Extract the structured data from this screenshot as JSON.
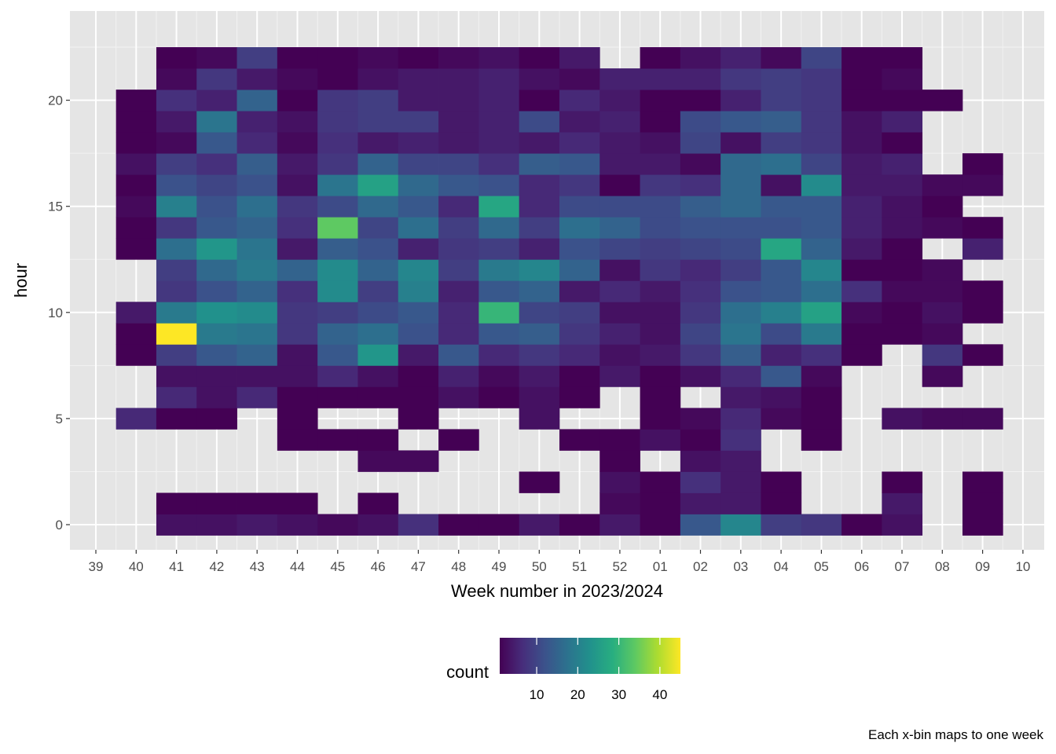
{
  "chart_data": {
    "type": "heatmap",
    "xlabel": "Week number in 2023/2024",
    "ylabel": "hour",
    "caption": "Each x-bin maps to one week",
    "x_ticks": [
      "39",
      "40",
      "41",
      "42",
      "43",
      "44",
      "45",
      "46",
      "47",
      "48",
      "49",
      "50",
      "51",
      "52",
      "01",
      "02",
      "03",
      "04",
      "05",
      "06",
      "07",
      "08",
      "09",
      "10"
    ],
    "y_ticks": [
      0,
      5,
      10,
      15,
      20
    ],
    "y_range": [
      -0.5,
      23.5
    ],
    "legend": {
      "title": "count",
      "position": "bottom",
      "colormap": "viridis",
      "min": 1,
      "max": 45,
      "ticks": [
        10,
        20,
        30,
        40
      ]
    },
    "grid": true,
    "weeks": [
      "40",
      "41",
      "42",
      "43",
      "44",
      "45",
      "46",
      "47",
      "48",
      "49",
      "50",
      "51",
      "52",
      "01",
      "02",
      "03",
      "04",
      "05",
      "06",
      "07",
      "08",
      "09"
    ],
    "values": {
      "40": {
        "5": 6,
        "8": 1,
        "9": 1,
        "10": 4,
        "13": 1,
        "14": 1,
        "15": 2,
        "16": 1,
        "17": 3,
        "18": 1,
        "19": 1,
        "20": 1
      },
      "41": {
        "0": 3,
        "1": 1,
        "5": 1,
        "6": 6,
        "7": 3,
        "8": 9,
        "9": 45,
        "10": 19,
        "11": 8,
        "12": 9,
        "13": 17,
        "14": 8,
        "15": 20,
        "16": 12,
        "17": 9,
        "18": 2,
        "19": 4,
        "20": 7,
        "21": 2,
        "22": 1
      },
      "42": {
        "0": 3,
        "1": 1,
        "5": 1,
        "6": 3,
        "7": 3,
        "8": 13,
        "9": 19,
        "10": 23,
        "11": 12,
        "12": 16,
        "13": 24,
        "14": 13,
        "15": 12,
        "16": 10,
        "17": 7,
        "18": 13,
        "19": 18,
        "20": 5,
        "21": 8,
        "22": 2
      },
      "43": {
        "0": 4,
        "1": 1,
        "6": 6,
        "7": 3,
        "8": 15,
        "9": 18,
        "10": 22,
        "11": 15,
        "12": 19,
        "13": 18,
        "14": 15,
        "15": 17,
        "16": 12,
        "17": 14,
        "18": 6,
        "19": 5,
        "20": 15,
        "21": 4,
        "22": 9
      },
      "44": {
        "0": 3,
        "1": 1,
        "4": 1,
        "5": 1,
        "6": 1,
        "7": 3,
        "8": 3,
        "9": 8,
        "10": 8,
        "11": 7,
        "12": 15,
        "13": 4,
        "14": 7,
        "15": 8,
        "16": 3,
        "17": 4,
        "18": 2,
        "19": 3,
        "20": 1,
        "21": 2,
        "22": 1
      },
      "45": {
        "0": 2,
        "4": 1,
        "6": 1,
        "7": 6,
        "8": 13,
        "9": 15,
        "10": 9,
        "11": 22,
        "12": 22,
        "13": 14,
        "14": 34,
        "15": 11,
        "16": 18,
        "17": 8,
        "18": 7,
        "19": 8,
        "20": 8,
        "21": 1,
        "22": 1
      },
      "46": {
        "0": 3,
        "1": 1,
        "3": 2,
        "4": 1,
        "6": 1,
        "7": 3,
        "8": 24,
        "9": 17,
        "10": 11,
        "11": 9,
        "12": 15,
        "13": 12,
        "14": 10,
        "15": 16,
        "16": 26,
        "17": 15,
        "18": 4,
        "19": 9,
        "20": 9,
        "21": 3,
        "22": 2
      },
      "47": {
        "0": 7,
        "3": 2,
        "5": 1,
        "6": 1,
        "7": 1,
        "8": 4,
        "9": 12,
        "10": 13,
        "11": 20,
        "12": 21,
        "13": 5,
        "14": 17,
        "15": 13,
        "16": 16,
        "17": 10,
        "18": 5,
        "19": 9,
        "20": 4,
        "21": 4,
        "22": 1
      },
      "48": {
        "0": 1,
        "4": 1,
        "6": 3,
        "7": 5,
        "8": 13,
        "9": 6,
        "10": 6,
        "11": 5,
        "12": 9,
        "13": 8,
        "14": 9,
        "15": 6,
        "16": 13,
        "17": 10,
        "18": 4,
        "19": 4,
        "20": 4,
        "21": 4,
        "22": 2
      },
      "49": {
        "0": 1,
        "6": 1,
        "7": 2,
        "8": 6,
        "9": 13,
        "10": 30,
        "11": 13,
        "12": 19,
        "13": 9,
        "14": 16,
        "15": 27,
        "16": 12,
        "17": 7,
        "18": 5,
        "19": 5,
        "20": 5,
        "21": 5,
        "22": 3
      },
      "50": {
        "0": 4,
        "2": 1,
        "5": 3,
        "6": 3,
        "7": 4,
        "8": 8,
        "9": 14,
        "10": 10,
        "11": 15,
        "12": 21,
        "13": 5,
        "14": 9,
        "15": 6,
        "16": 6,
        "17": 14,
        "18": 4,
        "19": 11,
        "20": 1,
        "21": 3,
        "22": 1
      },
      "51": {
        "0": 1,
        "4": 1,
        "6": 1,
        "7": 1,
        "8": 6,
        "9": 8,
        "10": 9,
        "11": 4,
        "12": 15,
        "13": 12,
        "14": 17,
        "15": 11,
        "16": 8,
        "17": 13,
        "18": 6,
        "19": 4,
        "20": 6,
        "21": 2,
        "22": 4
      },
      "52": {
        "0": 4,
        "1": 2,
        "2": 3,
        "3": 1,
        "4": 1,
        "7": 4,
        "8": 3,
        "9": 5,
        "10": 3,
        "11": 6,
        "12": 3,
        "13": 10,
        "14": 15,
        "15": 11,
        "16": 1,
        "17": 4,
        "18": 4,
        "19": 5,
        "20": 4,
        "21": 5
      },
      "01": {
        "0": 1,
        "1": 1,
        "2": 1,
        "4": 3,
        "5": 1,
        "6": 1,
        "7": 1,
        "8": 4,
        "9": 3,
        "10": 3,
        "11": 4,
        "12": 8,
        "13": 9,
        "14": 11,
        "15": 11,
        "16": 8,
        "17": 4,
        "18": 3,
        "19": 1,
        "20": 1,
        "21": 5,
        "22": 1
      },
      "02": {
        "0": 13,
        "1": 4,
        "2": 7,
        "3": 3,
        "4": 1,
        "5": 2,
        "7": 3,
        "8": 8,
        "9": 10,
        "10": 8,
        "11": 7,
        "12": 6,
        "13": 10,
        "14": 12,
        "15": 14,
        "16": 7,
        "17": 2,
        "18": 10,
        "19": 11,
        "20": 1,
        "21": 5,
        "22": 3
      },
      "03": {
        "0": 21,
        "1": 4,
        "2": 4,
        "3": 4,
        "4": 7,
        "5": 6,
        "6": 4,
        "7": 6,
        "8": 14,
        "9": 18,
        "10": 17,
        "11": 12,
        "12": 9,
        "13": 11,
        "14": 12,
        "15": 16,
        "16": 16,
        "17": 16,
        "18": 3,
        "19": 13,
        "20": 5,
        "21": 8,
        "22": 5
      },
      "04": {
        "0": 9,
        "1": 1,
        "2": 1,
        "5": 2,
        "6": 3,
        "7": 13,
        "8": 5,
        "9": 11,
        "10": 20,
        "11": 13,
        "12": 13,
        "13": 27,
        "14": 12,
        "15": 13,
        "16": 3,
        "17": 17,
        "18": 9,
        "19": 14,
        "20": 9,
        "21": 9,
        "22": 2
      },
      "05": {
        "0": 8,
        "4": 1,
        "5": 1,
        "6": 1,
        "7": 2,
        "8": 7,
        "9": 19,
        "10": 26,
        "11": 17,
        "12": 21,
        "13": 15,
        "14": 13,
        "15": 13,
        "16": 22,
        "17": 10,
        "18": 8,
        "19": 8,
        "20": 8,
        "21": 8,
        "22": 10
      },
      "06": {
        "0": 1,
        "8": 1,
        "9": 1,
        "10": 2,
        "11": 7,
        "12": 1,
        "13": 4,
        "14": 5,
        "15": 5,
        "16": 4,
        "17": 4,
        "18": 3,
        "19": 3,
        "20": 1,
        "21": 1,
        "22": 1
      },
      "07": {
        "0": 3,
        "1": 4,
        "2": 1,
        "5": 3,
        "9": 1,
        "10": 1,
        "11": 2,
        "12": 1,
        "13": 1,
        "14": 3,
        "15": 3,
        "16": 4,
        "17": 5,
        "18": 1,
        "19": 5,
        "20": 1,
        "21": 2,
        "22": 1
      },
      "08": {
        "5": 2,
        "7": 2,
        "8": 8,
        "9": 2,
        "10": 3,
        "11": 2,
        "12": 2,
        "14": 2,
        "15": 1,
        "16": 2,
        "20": 1
      },
      "09": {
        "0": 1,
        "1": 1,
        "2": 1,
        "5": 2,
        "8": 1,
        "10": 1,
        "11": 1,
        "13": 5,
        "14": 1,
        "16": 2,
        "17": 1
      }
    }
  }
}
